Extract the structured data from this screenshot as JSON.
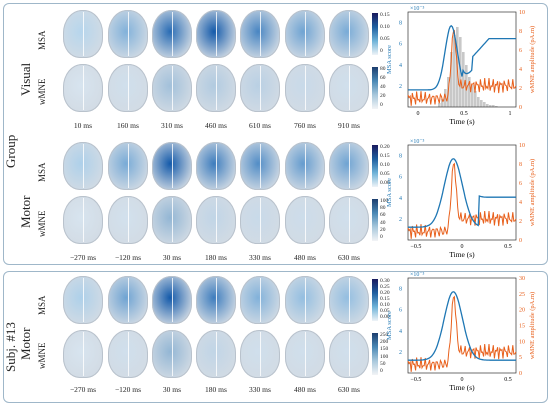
{
  "group_label": "Group",
  "subject_label": "Subj. #13",
  "conditions": [
    {
      "label": "Visual",
      "row_labels": [
        "MSA",
        "wMNE"
      ],
      "times": [
        "10 ms",
        "160 ms",
        "310 ms",
        "460 ms",
        "610 ms",
        "760 ms",
        "910 ms"
      ],
      "msa_cbar": {
        "ticks": [
          "0.15",
          "0.10",
          "0.05",
          "0"
        ],
        "exp": ""
      },
      "wmne_cbar": {
        "ticks": [
          "80",
          "60",
          "40",
          "20",
          "0"
        ]
      }
    },
    {
      "label": "Motor",
      "row_labels": [
        "MSA",
        "wMNE"
      ],
      "times": [
        "−270 ms",
        "−120 ms",
        "30 ms",
        "180 ms",
        "330 ms",
        "480 ms",
        "630 ms"
      ],
      "msa_cbar": {
        "ticks": [
          "0.20",
          "0.15",
          "0.10",
          "0.05",
          "0.00"
        ]
      },
      "wmne_cbar": {
        "ticks": [
          "100",
          "80",
          "60",
          "40",
          "20",
          "0"
        ]
      }
    },
    {
      "label": "Motor",
      "row_labels": [
        "MSA",
        "wMNE"
      ],
      "times": [
        "−270 ms",
        "−120 ms",
        "30 ms",
        "180 ms",
        "330 ms",
        "480 ms",
        "630 ms"
      ],
      "msa_cbar": {
        "ticks": [
          "0.30",
          "0.25",
          "0.20",
          "0.15",
          "0.10",
          "0.05",
          "0.00"
        ]
      },
      "wmne_cbar": {
        "ticks": [
          "250",
          "200",
          "150",
          "100",
          "50",
          "0"
        ]
      }
    }
  ],
  "plots": [
    {
      "ylabel_left": "MSA score",
      "ylabel_right": "wMNE amplitude (pA.m)",
      "xlabel": "Time (s)",
      "xticks": [
        "0",
        "0.5",
        "1"
      ],
      "yticks_left": [
        "2",
        "4",
        "6",
        "8"
      ],
      "yticks_right": [
        "0",
        "2",
        "4",
        "6",
        "8",
        "10"
      ],
      "exp": "×10⁻³"
    },
    {
      "ylabel_left": "MSA score",
      "ylabel_right": "wMNE amplitude (pA.m)",
      "xlabel": "Time (s)",
      "xticks": [
        "−0.5",
        "0",
        "0.5"
      ],
      "yticks_left": [
        "2",
        "4",
        "6",
        "8"
      ],
      "yticks_right": [
        "0",
        "2",
        "4",
        "6",
        "8",
        "10"
      ],
      "exp": "×10⁻³"
    },
    {
      "ylabel_left": "MSA score",
      "ylabel_right": "wMNE amplitude (pA.m)",
      "xlabel": "Time (s)",
      "xticks": [
        "−0.5",
        "0",
        "0.5"
      ],
      "yticks_left": [
        "2",
        "4",
        "6",
        "8"
      ],
      "yticks_right": [
        "0",
        "5",
        "10",
        "15",
        "20",
        "25",
        "30"
      ],
      "exp": "×10⁻³"
    }
  ],
  "colors": {
    "msa": "#1f77b4",
    "wmne": "#e8601c",
    "frame": "#9fb7c9"
  }
}
